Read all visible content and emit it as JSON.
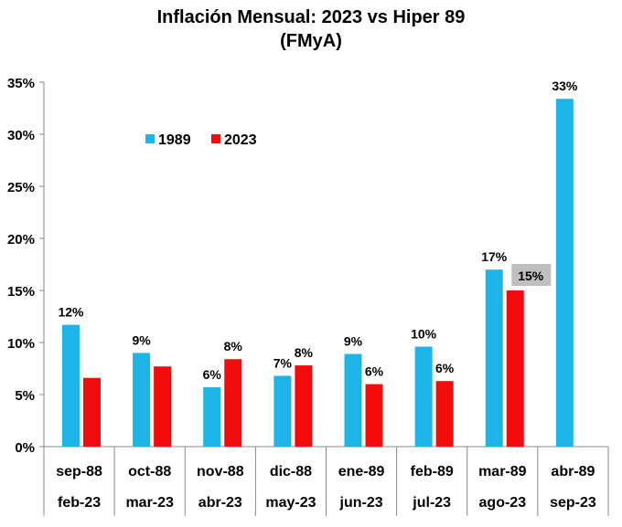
{
  "chart_data": {
    "type": "bar",
    "title": "Inflación Mensual: 2023 vs Hiper 89",
    "subtitle": "(FMyA)",
    "categories_1989": [
      "sep-88",
      "oct-88",
      "nov-88",
      "dic-88",
      "ene-89",
      "feb-89",
      "mar-89",
      "abr-89"
    ],
    "categories_2023": [
      "feb-23",
      "mar-23",
      "abr-23",
      "may-23",
      "jun-23",
      "jul-23",
      "ago-23",
      "sep-23"
    ],
    "series": [
      {
        "name": "1989",
        "color": "#1FB4E8",
        "values": [
          11.7,
          9.0,
          5.7,
          6.8,
          8.9,
          9.6,
          17.0,
          33.4
        ],
        "labels": [
          "12%",
          "9%",
          "6%",
          "7%",
          "9%",
          "10%",
          "17%",
          "33%"
        ]
      },
      {
        "name": "2023",
        "color": "#F20C0C",
        "values": [
          6.6,
          7.7,
          8.4,
          7.8,
          6.0,
          6.3,
          15.0,
          null
        ],
        "labels": [
          "",
          "",
          "8%",
          "8%",
          "6%",
          "6%",
          "15%",
          ""
        ]
      }
    ],
    "highlighted_label": {
      "series": "2023",
      "category_index": 6,
      "background": "#BFBFBF"
    },
    "ylim": [
      0,
      35
    ],
    "yticks": [
      "0%",
      "5%",
      "10%",
      "15%",
      "20%",
      "25%",
      "30%",
      "35%"
    ],
    "grid": false,
    "legend": "top-left"
  }
}
